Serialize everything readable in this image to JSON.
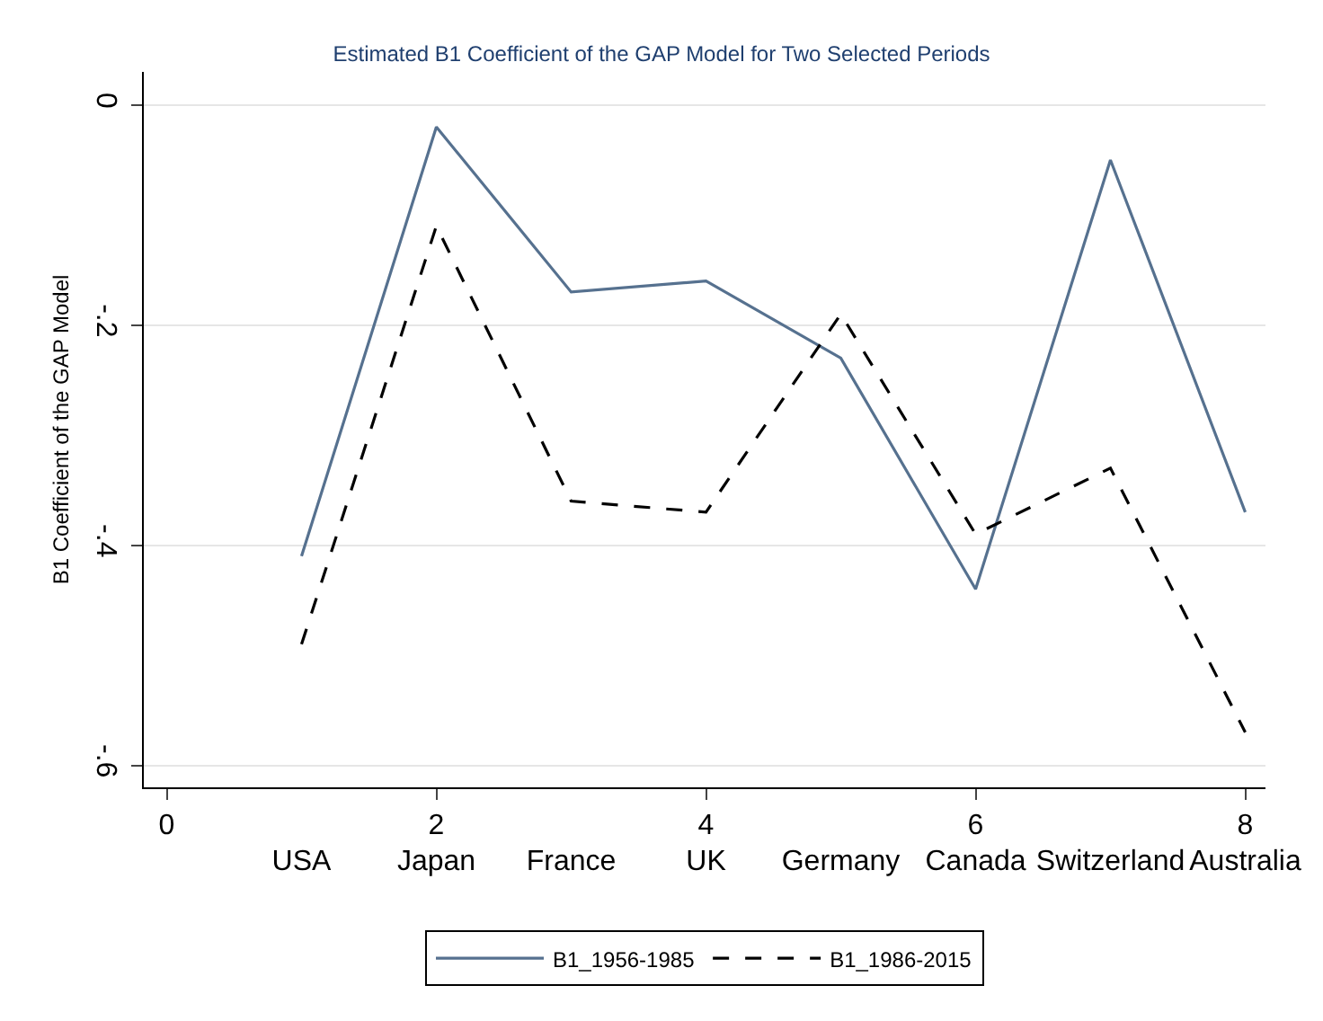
{
  "chart_data": {
    "type": "line",
    "title": "Estimated B1 Coefficient of the GAP Model for Two Selected Periods",
    "ylabel": "B1 Coefficient of the GAP Model",
    "categories": [
      null,
      "USA",
      "Japan",
      "France",
      "UK",
      "Germany",
      "Canada",
      "Switzerland",
      "Australia"
    ],
    "x2lim": [
      -0.17,
      8.15
    ],
    "x2ticks": [
      0,
      2,
      4,
      6,
      8
    ],
    "ylim": [
      -0.62,
      0.03
    ],
    "yticks": [
      {
        "value": 0,
        "label": "0"
      },
      {
        "value": -0.2,
        "label": "-.2"
      },
      {
        "value": -0.4,
        "label": "-.4"
      },
      {
        "value": -0.6,
        "label": "-.6"
      }
    ],
    "series": [
      {
        "name": "B1_1956-1985",
        "color": "#56718f",
        "line_style": "solid",
        "values": [
          null,
          -0.41,
          -0.02,
          -0.17,
          -0.16,
          -0.23,
          -0.44,
          -0.05,
          -0.37
        ]
      },
      {
        "name": "B1_1986-2015",
        "color": "#000000",
        "line_style": "dashed",
        "values": [
          null,
          -0.49,
          -0.11,
          -0.36,
          -0.37,
          -0.19,
          -0.39,
          -0.33,
          -0.57
        ]
      }
    ],
    "grid": "y",
    "legend": "bottom",
    "marker": "none"
  }
}
